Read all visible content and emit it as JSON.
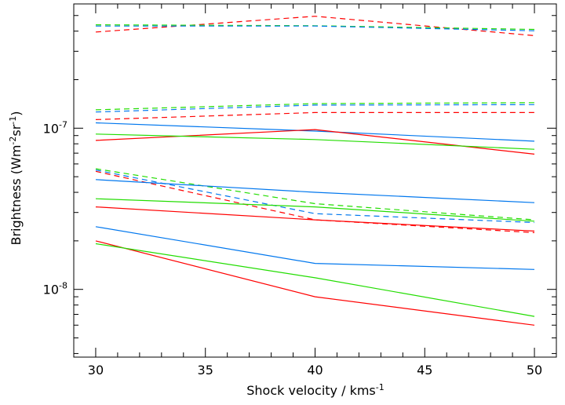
{
  "chart_data": {
    "type": "line",
    "title": "",
    "xlabel": "Shock velocity / kms",
    "xlabel_sup": "-1",
    "ylabel": "Brightness (Wm",
    "ylabel_sup1": "-2",
    "ylabel_mid": "sr",
    "ylabel_sup2": "-1",
    "ylabel_end": ")",
    "xlim": [
      29,
      51
    ],
    "ylim": [
      3.8e-09,
      5.9e-07
    ],
    "yscale": "log",
    "x_ticks": [
      30,
      35,
      40,
      45,
      50
    ],
    "x_tick_labels": [
      "30",
      "35",
      "40",
      "45",
      "50"
    ],
    "y_major_ticks": [
      1e-08,
      1e-07
    ],
    "y_major_labels": [
      {
        "base": "10",
        "exp": "-8"
      },
      {
        "base": "10",
        "exp": "-7"
      }
    ],
    "grid": false,
    "colors": {
      "red": "#ff0000",
      "green": "#22dd00",
      "blue": "#0077ee"
    },
    "series": [
      {
        "color": "red",
        "dash": true,
        "x": [
          30,
          40,
          50
        ],
        "y": [
          3.95e-07,
          4.95e-07,
          3.75e-07
        ]
      },
      {
        "color": "green",
        "dash": true,
        "x": [
          30,
          40,
          50
        ],
        "y": [
          4.38e-07,
          4.32e-07,
          4.1e-07
        ]
      },
      {
        "color": "blue",
        "dash": true,
        "x": [
          30,
          40,
          50
        ],
        "y": [
          4.3e-07,
          4.3e-07,
          4.02e-07
        ]
      },
      {
        "color": "green",
        "dash": true,
        "x": [
          30,
          40,
          50
        ],
        "y": [
          1.3e-07,
          1.42e-07,
          1.44e-07
        ]
      },
      {
        "color": "blue",
        "dash": true,
        "x": [
          30,
          40,
          50
        ],
        "y": [
          1.26e-07,
          1.39e-07,
          1.4e-07
        ]
      },
      {
        "color": "red",
        "dash": true,
        "x": [
          30,
          40,
          50
        ],
        "y": [
          1.13e-07,
          1.25e-07,
          1.25e-07
        ]
      },
      {
        "color": "blue",
        "dash": false,
        "x": [
          30,
          40,
          50
        ],
        "y": [
          1.08e-07,
          9.6e-08,
          8.3e-08
        ]
      },
      {
        "color": "red",
        "dash": false,
        "x": [
          30,
          40,
          50
        ],
        "y": [
          8.4e-08,
          9.8e-08,
          6.9e-08
        ]
      },
      {
        "color": "green",
        "dash": false,
        "x": [
          30,
          40,
          50
        ],
        "y": [
          9.2e-08,
          8.5e-08,
          7.4e-08
        ]
      },
      {
        "color": "green",
        "dash": true,
        "x": [
          30,
          40,
          50
        ],
        "y": [
          5.6e-08,
          3.4e-08,
          2.7e-08
        ]
      },
      {
        "color": "blue",
        "dash": true,
        "x": [
          30,
          40,
          50
        ],
        "y": [
          5.5e-08,
          2.95e-08,
          2.6e-08
        ]
      },
      {
        "color": "red",
        "dash": true,
        "x": [
          30,
          40,
          50
        ],
        "y": [
          5.4e-08,
          2.7e-08,
          2.25e-08
        ]
      },
      {
        "color": "blue",
        "dash": false,
        "x": [
          30,
          40,
          50
        ],
        "y": [
          4.8e-08,
          4e-08,
          3.45e-08
        ]
      },
      {
        "color": "green",
        "dash": false,
        "x": [
          30,
          40,
          50
        ],
        "y": [
          3.65e-08,
          3.25e-08,
          2.65e-08
        ]
      },
      {
        "color": "red",
        "dash": false,
        "x": [
          30,
          40,
          50
        ],
        "y": [
          3.25e-08,
          2.7e-08,
          2.3e-08
        ]
      },
      {
        "color": "blue",
        "dash": false,
        "x": [
          30,
          40,
          50
        ],
        "y": [
          2.45e-08,
          1.45e-08,
          1.33e-08
        ]
      },
      {
        "color": "red",
        "dash": false,
        "x": [
          30,
          40,
          50
        ],
        "y": [
          2e-08,
          9e-09,
          6e-09
        ]
      },
      {
        "color": "green",
        "dash": false,
        "x": [
          30,
          40,
          50
        ],
        "y": [
          1.92e-08,
          1.18e-08,
          6.8e-09
        ]
      }
    ]
  }
}
